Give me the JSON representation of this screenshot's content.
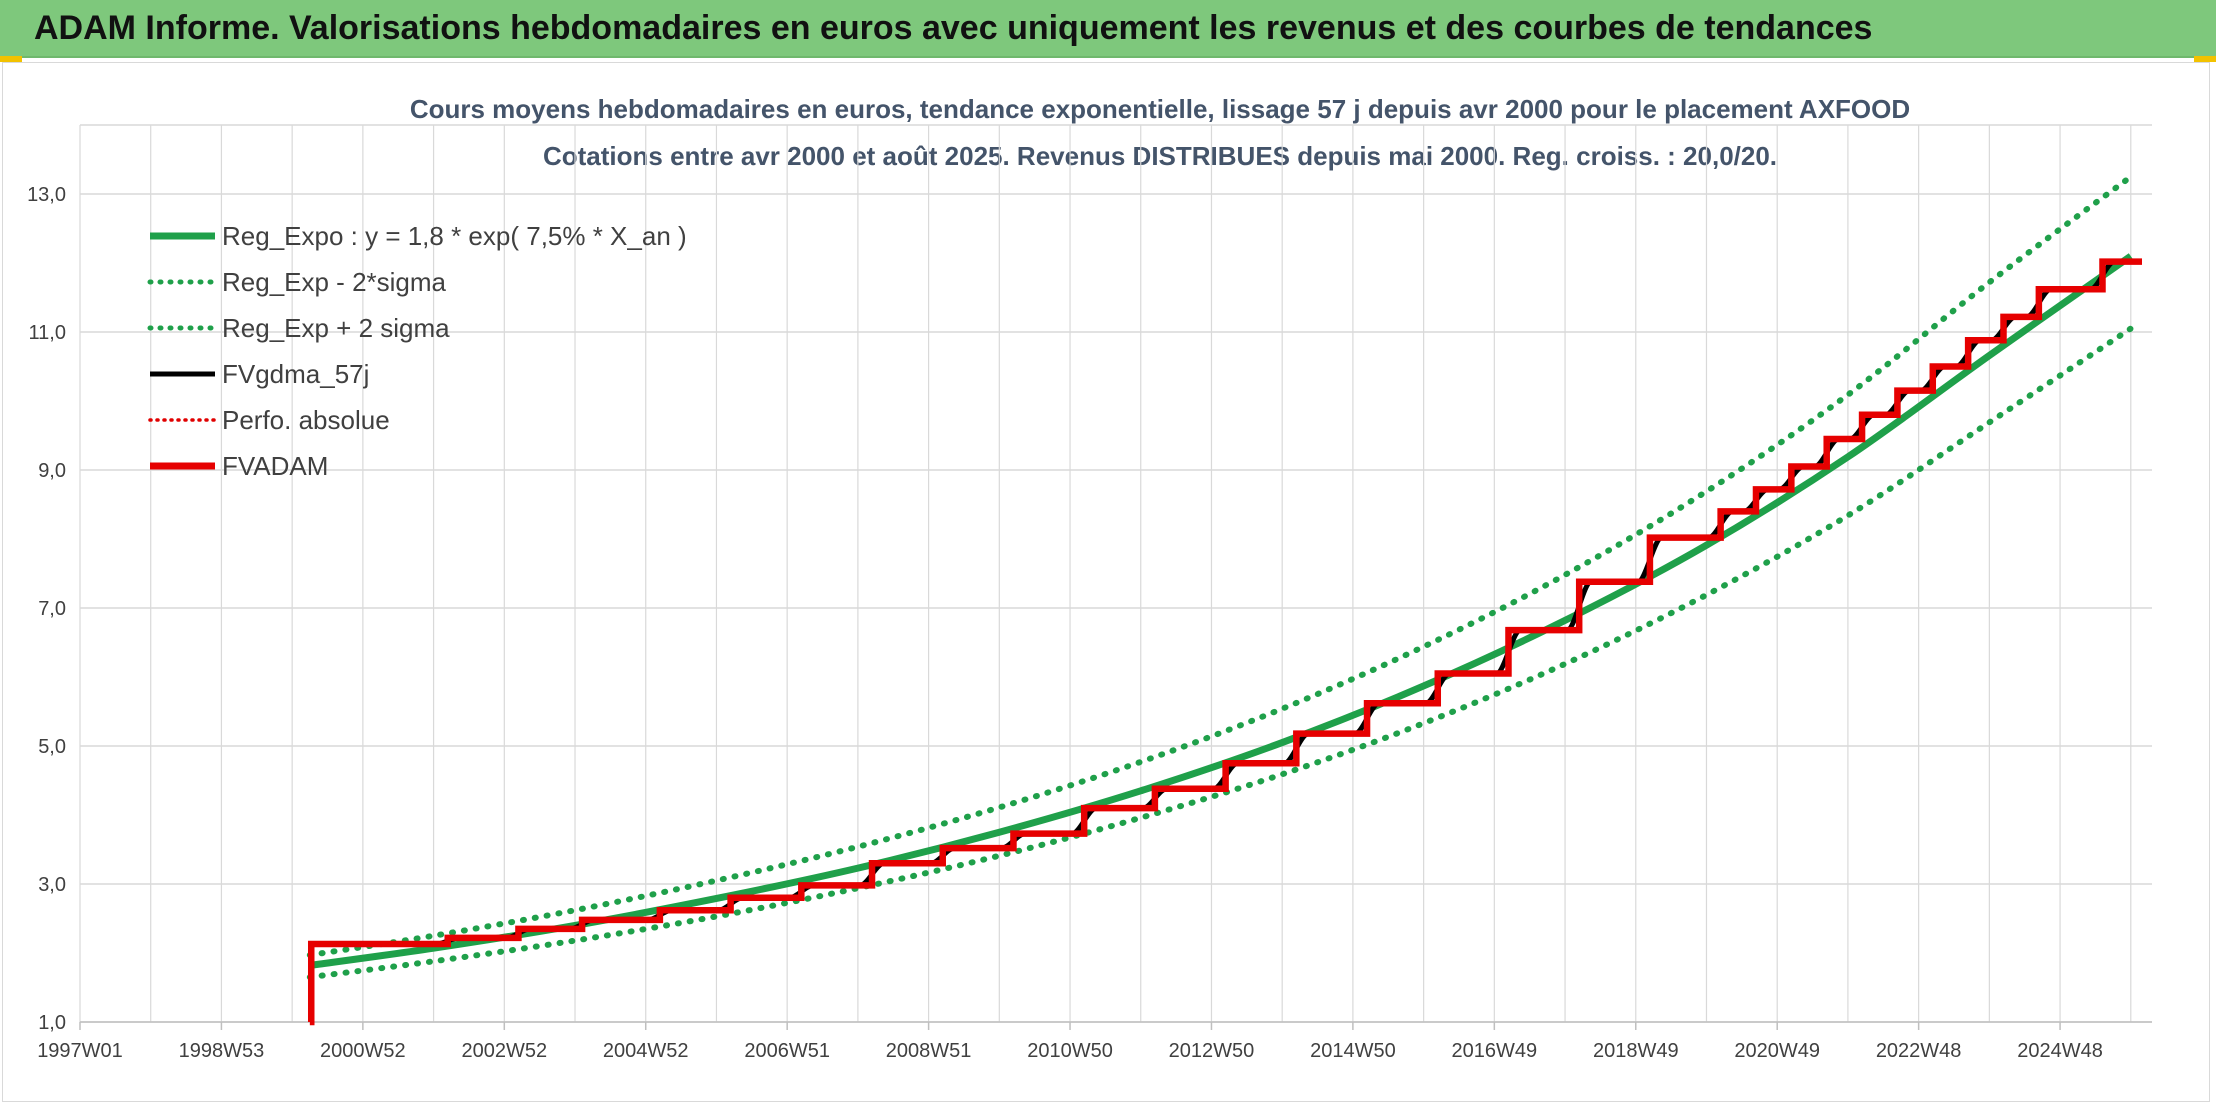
{
  "header": {
    "title": "ADAM Informe. Valorisations hebdomadaires en euros avec uniquement les revenus et des courbes de tendances"
  },
  "colors": {
    "header_bg": "#7ec87c",
    "reg_expo": "#1fa04a",
    "reg_band": "#1fa04a",
    "fv_gdma": "#000000",
    "perfo": "#e00000",
    "fvadam": "#e60000",
    "grid": "#d9d9d9"
  },
  "chart_data": {
    "type": "line",
    "title_line1": "Cours moyens hebdomadaires en euros, tendance exponentielle, lissage 57 j depuis avr 2000 pour le placement AXFOOD",
    "title_line2": "Cotations entre avr 2000 et août 2025. Revenus DISTRIBUES depuis mai 2000. Reg. croiss. : 20,0/20.",
    "x_tick_labels": [
      "1997W01",
      "1998W53",
      "2000W52",
      "2002W52",
      "2004W52",
      "2006W51",
      "2008W51",
      "2010W50",
      "2012W50",
      "2014W50",
      "2016W49",
      "2018W49",
      "2020W49",
      "2022W48",
      "2024W48"
    ],
    "x_range": [
      1997.0,
      2026.3
    ],
    "x_tick_years": [
      1997.0,
      1999.0,
      2001.0,
      2003.0,
      2005.0,
      2007.0,
      2009.0,
      2011.0,
      2013.0,
      2015.0,
      2017.0,
      2019.0,
      2021.0,
      2023.0,
      2025.0
    ],
    "y_tick_labels": [
      "1,0",
      "3,0",
      "5,0",
      "7,0",
      "9,0",
      "11,0",
      "13,0"
    ],
    "y_ticks": [
      1,
      3,
      5,
      7,
      9,
      11,
      13
    ],
    "ylim": [
      1,
      14
    ],
    "grid": true,
    "legend_position": "top-left",
    "legend": [
      {
        "label": "Reg_Expo : y = 1,8 * exp( 7,5% *  X_an )",
        "style": "solid-thick",
        "color": "#1fa04a"
      },
      {
        "label": "Reg_Exp - 2*sigma",
        "style": "dotted",
        "color": "#1fa04a"
      },
      {
        "label": "Reg_Exp + 2 sigma",
        "style": "dotted",
        "color": "#1fa04a"
      },
      {
        "label": "FVgdma_57j",
        "style": "solid",
        "color": "#000000"
      },
      {
        "label": "Perfo. absolue",
        "style": "dotted-thin",
        "color": "#e00000"
      },
      {
        "label": "FVADAM",
        "style": "solid-thick",
        "color": "#e60000"
      }
    ],
    "series": [
      {
        "name": "Reg_Expo : y = 1,8 * exp( 7,5% *  X_an )",
        "x": [
          2000.25,
          2002.0,
          2004.0,
          2006.0,
          2008.0,
          2010.0,
          2012.0,
          2014.0,
          2016.0,
          2018.0,
          2020.0,
          2022.0,
          2024.0,
          2026.0
        ],
        "y": [
          1.82,
          2.07,
          2.4,
          2.79,
          3.23,
          3.75,
          4.35,
          5.05,
          5.87,
          6.82,
          7.91,
          9.19,
          10.66,
          12.1
        ]
      },
      {
        "name": "Reg_Exp - 2*sigma",
        "x": [
          2000.25,
          2002.0,
          2004.0,
          2006.0,
          2008.0,
          2010.0,
          2012.0,
          2014.0,
          2016.0,
          2018.0,
          2020.0,
          2022.0,
          2024.0,
          2026.0
        ],
        "y": [
          1.65,
          1.88,
          2.18,
          2.53,
          2.94,
          3.41,
          3.96,
          4.59,
          5.33,
          6.19,
          7.19,
          8.34,
          9.69,
          11.05
        ]
      },
      {
        "name": "Reg_Exp + 2 sigma",
        "x": [
          2000.25,
          2002.0,
          2004.0,
          2006.0,
          2008.0,
          2010.0,
          2012.0,
          2014.0,
          2016.0,
          2018.0,
          2020.0,
          2022.0,
          2024.0,
          2026.0
        ],
        "y": [
          1.97,
          2.25,
          2.62,
          3.05,
          3.54,
          4.11,
          4.77,
          5.54,
          6.44,
          7.48,
          8.69,
          10.09,
          11.72,
          13.25
        ]
      },
      {
        "name": "FVADAM",
        "x": [
          2000.25,
          2000.27,
          2002.2,
          2003.2,
          2004.1,
          2005.2,
          2006.2,
          2007.2,
          2008.2,
          2009.2,
          2010.2,
          2011.2,
          2012.2,
          2013.2,
          2014.2,
          2015.2,
          2016.2,
          2017.2,
          2018.2,
          2019.2,
          2020.2,
          2020.7,
          2021.2,
          2021.7,
          2022.2,
          2022.7,
          2023.2,
          2023.7,
          2024.2,
          2024.7,
          2025.6
        ],
        "y": [
          1.0,
          2.13,
          2.22,
          2.35,
          2.48,
          2.62,
          2.8,
          2.98,
          3.3,
          3.52,
          3.73,
          4.1,
          4.38,
          4.75,
          5.18,
          5.62,
          6.05,
          6.68,
          7.38,
          8.02,
          8.4,
          8.72,
          9.05,
          9.45,
          9.8,
          10.15,
          10.5,
          10.88,
          11.22,
          11.62,
          12.02
        ]
      }
    ]
  }
}
